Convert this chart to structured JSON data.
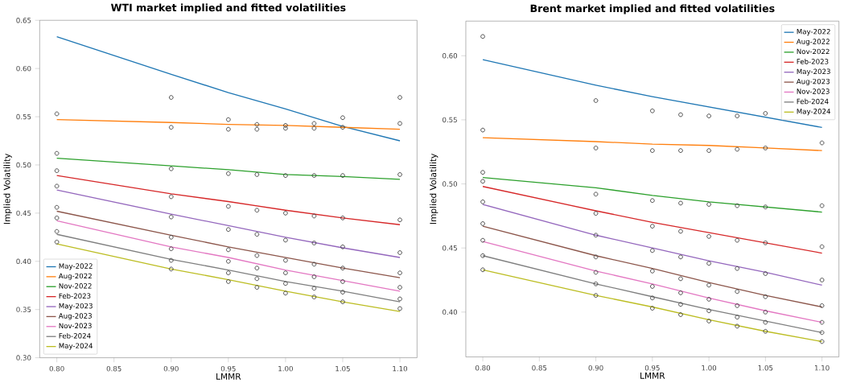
{
  "chart_data": [
    {
      "type": "line",
      "title": "WTI market implied and fitted volatilities",
      "xlabel": "LMMR",
      "ylabel": "Implied Volatility",
      "xlim": [
        0.785,
        1.115
      ],
      "ylim": [
        0.3,
        0.65
      ],
      "xticks": [
        {
          "value": 0.8,
          "label": "0.80"
        },
        {
          "value": 0.85,
          "label": "0.85"
        },
        {
          "value": 0.9,
          "label": "0.90"
        },
        {
          "value": 0.95,
          "label": "0.95"
        },
        {
          "value": 1.0,
          "label": "1.00"
        },
        {
          "value": 1.05,
          "label": "1.05"
        },
        {
          "value": 1.1,
          "label": "1.10"
        }
      ],
      "yticks": [
        {
          "value": 0.3,
          "label": "0.30"
        },
        {
          "value": 0.35,
          "label": "0.35"
        },
        {
          "value": 0.4,
          "label": "0.40"
        },
        {
          "value": 0.45,
          "label": "0.45"
        },
        {
          "value": 0.5,
          "label": "0.50"
        },
        {
          "value": 0.55,
          "label": "0.55"
        },
        {
          "value": 0.6,
          "label": "0.60"
        },
        {
          "value": 0.65,
          "label": "0.65"
        }
      ],
      "legend": "bottom left",
      "marker": "none",
      "line_style": "solid",
      "x": [
        0.8,
        0.9,
        0.95,
        1.0,
        1.05,
        1.1
      ],
      "series": [
        {
          "name": "May-2022",
          "color": "#1f77b4",
          "values": [
            0.633,
            0.594,
            0.575,
            0.558,
            0.54,
            0.525
          ]
        },
        {
          "name": "Aug-2022",
          "color": "#ff7f0e",
          "values": [
            0.547,
            0.544,
            0.542,
            0.541,
            0.539,
            0.537
          ]
        },
        {
          "name": "Nov-2022",
          "color": "#2ca02c",
          "values": [
            0.507,
            0.499,
            0.495,
            0.49,
            0.488,
            0.485
          ]
        },
        {
          "name": "Feb-2023",
          "color": "#d62728",
          "values": [
            0.489,
            0.47,
            0.462,
            0.453,
            0.445,
            0.438
          ]
        },
        {
          "name": "May-2023",
          "color": "#9467bd",
          "values": [
            0.474,
            0.449,
            0.437,
            0.425,
            0.414,
            0.404
          ]
        },
        {
          "name": "Aug-2023",
          "color": "#8c564b",
          "values": [
            0.452,
            0.427,
            0.415,
            0.404,
            0.393,
            0.383
          ]
        },
        {
          "name": "Nov-2023",
          "color": "#e377c2",
          "values": [
            0.442,
            0.415,
            0.404,
            0.391,
            0.38,
            0.369
          ]
        },
        {
          "name": "Feb-2024",
          "color": "#7f7f7f",
          "values": [
            0.428,
            0.402,
            0.391,
            0.379,
            0.369,
            0.358
          ]
        },
        {
          "name": "May-2024",
          "color": "#bcbd22",
          "values": [
            0.418,
            0.392,
            0.381,
            0.369,
            0.358,
            0.348
          ]
        },
        {
          "type": "scatter",
          "marker": "circle",
          "color": "#404040",
          "x": [
            0.8,
            0.8,
            0.8,
            0.8,
            0.8,
            0.8,
            0.8,
            0.8,
            0.9,
            0.9,
            0.9,
            0.9,
            0.9,
            0.9,
            0.9,
            0.9,
            0.9,
            0.95,
            0.95,
            0.95,
            0.95,
            0.95,
            0.95,
            0.95,
            0.95,
            0.95,
            0.975,
            0.975,
            0.975,
            0.975,
            0.975,
            0.975,
            0.975,
            0.975,
            0.975,
            1.0,
            1.0,
            1.0,
            1.0,
            1.0,
            1.0,
            1.0,
            1.0,
            1.0,
            1.025,
            1.025,
            1.025,
            1.025,
            1.025,
            1.025,
            1.025,
            1.025,
            1.025,
            1.05,
            1.05,
            1.05,
            1.05,
            1.05,
            1.05,
            1.05,
            1.05,
            1.05,
            1.1,
            1.1,
            1.1,
            1.1,
            1.1,
            1.1,
            1.1,
            1.1,
            1.1
          ],
          "values": [
            0.553,
            0.512,
            0.494,
            0.478,
            0.456,
            0.445,
            0.431,
            0.42,
            0.57,
            0.539,
            0.496,
            0.467,
            0.446,
            0.425,
            0.413,
            0.401,
            0.392,
            0.547,
            0.537,
            0.491,
            0.457,
            0.433,
            0.412,
            0.4,
            0.388,
            0.379,
            0.542,
            0.537,
            0.49,
            0.453,
            0.428,
            0.406,
            0.393,
            0.382,
            0.373,
            0.541,
            0.538,
            0.489,
            0.45,
            0.422,
            0.401,
            0.388,
            0.377,
            0.367,
            0.543,
            0.538,
            0.489,
            0.447,
            0.419,
            0.397,
            0.384,
            0.372,
            0.363,
            0.549,
            0.539,
            0.489,
            0.445,
            0.415,
            0.393,
            0.379,
            0.368,
            0.358,
            0.57,
            0.543,
            0.49,
            0.443,
            0.409,
            0.388,
            0.373,
            0.361,
            0.351
          ]
        }
      ]
    },
    {
      "type": "line",
      "title": "Brent market implied and fitted volatilities",
      "xlabel": "LMMR",
      "ylabel": "Implied Volatility",
      "xlim": [
        0.785,
        1.115
      ],
      "ylim": [
        0.365,
        0.627
      ],
      "xticks": [
        {
          "value": 0.8,
          "label": "0.80"
        },
        {
          "value": 0.85,
          "label": "0.85"
        },
        {
          "value": 0.9,
          "label": "0.90"
        },
        {
          "value": 0.95,
          "label": "0.95"
        },
        {
          "value": 1.0,
          "label": "1.00"
        },
        {
          "value": 1.05,
          "label": "1.05"
        },
        {
          "value": 1.1,
          "label": "1.10"
        }
      ],
      "yticks": [
        {
          "value": 0.4,
          "label": "0.40"
        },
        {
          "value": 0.45,
          "label": "0.45"
        },
        {
          "value": 0.5,
          "label": "0.50"
        },
        {
          "value": 0.55,
          "label": "0.55"
        },
        {
          "value": 0.6,
          "label": "0.60"
        }
      ],
      "legend": "top right",
      "marker": "none",
      "line_style": "solid",
      "x": [
        0.8,
        0.9,
        0.95,
        1.0,
        1.05,
        1.1
      ],
      "series": [
        {
          "name": "May-2022",
          "color": "#1f77b4",
          "values": [
            0.597,
            0.577,
            0.568,
            0.56,
            0.552,
            0.544
          ]
        },
        {
          "name": "Aug-2022",
          "color": "#ff7f0e",
          "values": [
            0.536,
            0.533,
            0.531,
            0.53,
            0.528,
            0.526
          ]
        },
        {
          "name": "Nov-2022",
          "color": "#2ca02c",
          "values": [
            0.505,
            0.497,
            0.491,
            0.486,
            0.482,
            0.478
          ]
        },
        {
          "name": "Feb-2023",
          "color": "#d62728",
          "values": [
            0.498,
            0.479,
            0.47,
            0.462,
            0.454,
            0.446
          ]
        },
        {
          "name": "May-2023",
          "color": "#9467bd",
          "values": [
            0.484,
            0.46,
            0.45,
            0.44,
            0.431,
            0.421
          ]
        },
        {
          "name": "Aug-2023",
          "color": "#8c564b",
          "values": [
            0.467,
            0.444,
            0.434,
            0.423,
            0.413,
            0.404
          ]
        },
        {
          "name": "Nov-2023",
          "color": "#e377c2",
          "values": [
            0.455,
            0.432,
            0.422,
            0.411,
            0.401,
            0.392
          ]
        },
        {
          "name": "Feb-2024",
          "color": "#7f7f7f",
          "values": [
            0.444,
            0.422,
            0.412,
            0.402,
            0.393,
            0.384
          ]
        },
        {
          "name": "May-2024",
          "color": "#bcbd22",
          "values": [
            0.433,
            0.413,
            0.404,
            0.394,
            0.385,
            0.377
          ]
        },
        {
          "type": "scatter",
          "marker": "circle",
          "color": "#404040",
          "x": [
            0.8,
            0.8,
            0.8,
            0.8,
            0.8,
            0.8,
            0.8,
            0.8,
            0.8,
            0.9,
            0.9,
            0.9,
            0.9,
            0.9,
            0.9,
            0.9,
            0.9,
            0.9,
            0.95,
            0.95,
            0.95,
            0.95,
            0.95,
            0.95,
            0.95,
            0.95,
            0.95,
            0.975,
            0.975,
            0.975,
            0.975,
            0.975,
            0.975,
            0.975,
            0.975,
            0.975,
            1.0,
            1.0,
            1.0,
            1.0,
            1.0,
            1.0,
            1.0,
            1.0,
            1.0,
            1.025,
            1.025,
            1.025,
            1.025,
            1.025,
            1.025,
            1.025,
            1.025,
            1.025,
            1.05,
            1.05,
            1.05,
            1.05,
            1.05,
            1.05,
            1.05,
            1.05,
            1.05,
            1.1,
            1.1,
            1.1,
            1.1,
            1.1,
            1.1,
            1.1,
            1.1
          ],
          "values": [
            0.615,
            0.542,
            0.509,
            0.502,
            0.486,
            0.469,
            0.456,
            0.444,
            0.433,
            0.565,
            0.528,
            0.492,
            0.477,
            0.46,
            0.443,
            0.431,
            0.422,
            0.413,
            0.557,
            0.526,
            0.487,
            0.467,
            0.448,
            0.432,
            0.42,
            0.411,
            0.403,
            0.554,
            0.526,
            0.485,
            0.463,
            0.443,
            0.426,
            0.415,
            0.406,
            0.398,
            0.553,
            0.526,
            0.484,
            0.459,
            0.438,
            0.421,
            0.41,
            0.401,
            0.393,
            0.553,
            0.527,
            0.483,
            0.456,
            0.434,
            0.416,
            0.405,
            0.396,
            0.389,
            0.555,
            0.528,
            0.482,
            0.454,
            0.43,
            0.412,
            0.4,
            0.392,
            0.385,
            0.532,
            0.483,
            0.451,
            0.425,
            0.405,
            0.392,
            0.384,
            0.377
          ]
        }
      ]
    }
  ]
}
